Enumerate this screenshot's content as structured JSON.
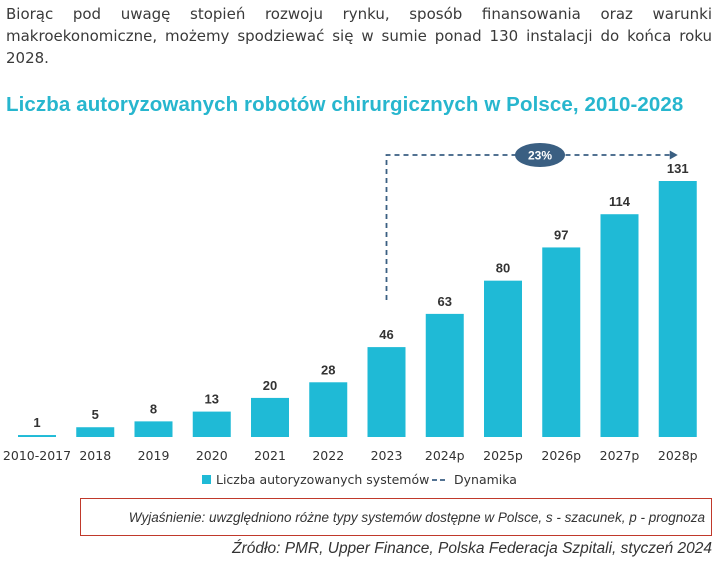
{
  "intro_text": "Biorąc pod uwagę stopień rozwoju rynku, sposób finansowania oraz warunki makroekonomiczne, możemy spodziewać się w sumie ponad 130 instalacji do końca roku 2028.",
  "note": "Wyjaśnienie: uwzględniono różne typy systemów dostępne w Polsce, s - szacunek, p - prognoza",
  "source": "Źródło: PMR, Upper Finance, Polska Federacja Szpitali, styczeń 2024",
  "colors": {
    "bar": "#1fbad6",
    "title": "#27b6ce",
    "dynamics_line": "#3a5f82",
    "badge": "#3a5f82",
    "note_border": "#c0392b"
  },
  "chart_data": {
    "type": "bar",
    "title": "Liczba autoryzowanych robotów chirurgicznych w Polsce, 2010-2028",
    "categories": [
      "2010-2017",
      "2018",
      "2019",
      "2020",
      "2021",
      "2022",
      "2023",
      "2024p",
      "2025p",
      "2026p",
      "2027p",
      "2028p"
    ],
    "series": [
      {
        "name": "Liczba autoryzowanych systemów",
        "values": [
          1,
          5,
          8,
          13,
          20,
          28,
          46,
          63,
          80,
          97,
          114,
          131
        ]
      }
    ],
    "data_labels": [
      "1",
      "5",
      "8",
      "13",
      "20",
      "28",
      "46",
      "63",
      "80",
      "97",
      "114",
      "131"
    ],
    "dynamics": {
      "name": "Dynamika",
      "from": "2023",
      "to": "2028p",
      "label": "23%"
    },
    "legend_position": "bottom",
    "grid": false
  }
}
